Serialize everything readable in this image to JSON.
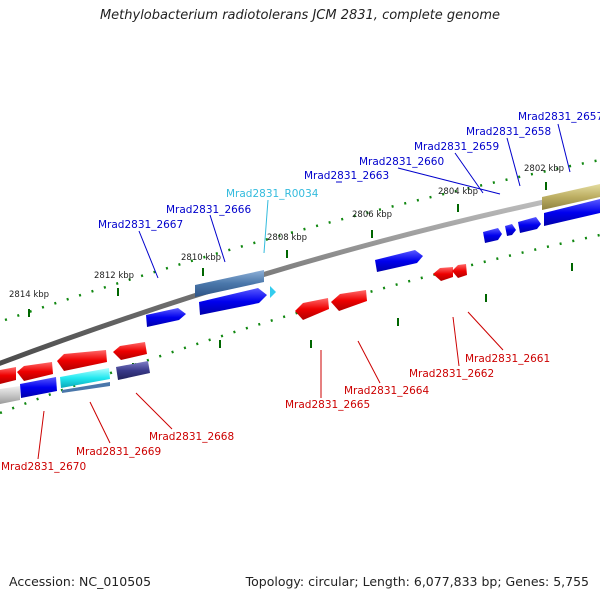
{
  "title": "Methylobacterium radiotolerans JCM 2831, complete genome",
  "footer": {
    "accession": "Accession: NC_010505",
    "summary": "Topology: circular; Length: 6,077,833 bp; Genes: 5,755"
  },
  "colors": {
    "forward_cds": "#0000ee",
    "reverse_cds": "#ee0000",
    "rna": "#33ccee",
    "backbone": "#888888",
    "tick": "#006600",
    "forward_label": "#0000cc",
    "reverse_label": "#cc0000",
    "rna_label": "#33bbdd"
  },
  "ruler": {
    "unit": "kbp",
    "ticks": [
      {
        "label": "2814 kbp"
      },
      {
        "label": "2812 kbp"
      },
      {
        "label": "2810 kbp"
      },
      {
        "label": "2808 kbp"
      },
      {
        "label": "2806 kbp"
      },
      {
        "label": "2804 kbp"
      },
      {
        "label": "2802 kbp"
      }
    ]
  },
  "forward_genes": [
    {
      "label": "Mrad2831_2657",
      "type": "CDS",
      "strand": "+"
    },
    {
      "label": "Mrad2831_2658",
      "type": "CDS",
      "strand": "+"
    },
    {
      "label": "Mrad2831_2659",
      "type": "CDS",
      "strand": "+"
    },
    {
      "label": "Mrad2831_2660",
      "type": "CDS",
      "strand": "+"
    },
    {
      "label": "Mrad2831_2663",
      "type": "CDS",
      "strand": "+"
    },
    {
      "label": "Mrad2831_R0034",
      "type": "RNA",
      "strand": "+"
    },
    {
      "label": "Mrad2831_2666",
      "type": "CDS",
      "strand": "+"
    },
    {
      "label": "Mrad2831_2667",
      "type": "CDS",
      "strand": "+"
    }
  ],
  "reverse_genes": [
    {
      "label": "Mrad2831_2661",
      "type": "CDS",
      "strand": "-"
    },
    {
      "label": "Mrad2831_2662",
      "type": "CDS",
      "strand": "-"
    },
    {
      "label": "Mrad2831_2664",
      "type": "CDS",
      "strand": "-"
    },
    {
      "label": "Mrad2831_2665",
      "type": "CDS",
      "strand": "-"
    },
    {
      "label": "Mrad2831_2668",
      "type": "CDS",
      "strand": "-"
    },
    {
      "label": "Mrad2831_2669",
      "type": "CDS",
      "strand": "-"
    },
    {
      "label": "Mrad2831_2670",
      "type": "CDS",
      "strand": "-"
    }
  ]
}
